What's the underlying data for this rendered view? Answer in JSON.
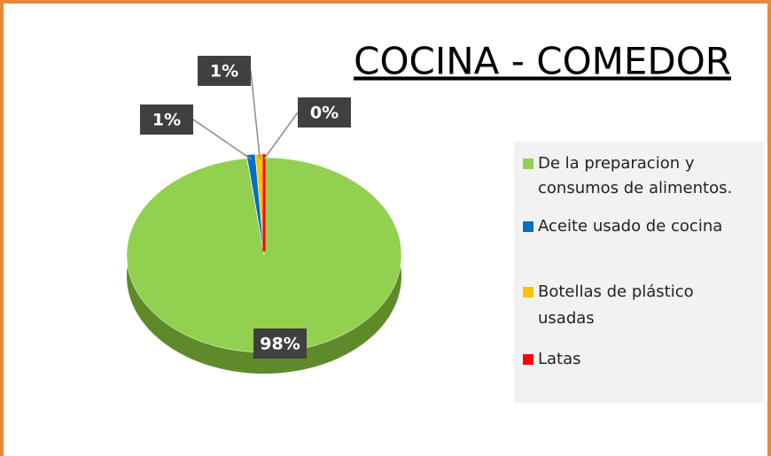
{
  "chart_data": {
    "type": "pie",
    "title": "COCINA - COMEDOR",
    "categories": [
      "De la preparacion y consumos de alimentos.",
      "Aceite usado de cocina",
      "Botellas de plástico usadas",
      "Latas"
    ],
    "values": [
      98,
      1,
      1,
      0
    ],
    "value_labels": [
      "98%",
      "1%",
      "1%",
      "0%"
    ],
    "colors": [
      "#92d050",
      "#0070c0",
      "#ffc000",
      "#ff0000"
    ],
    "legend": "right"
  }
}
